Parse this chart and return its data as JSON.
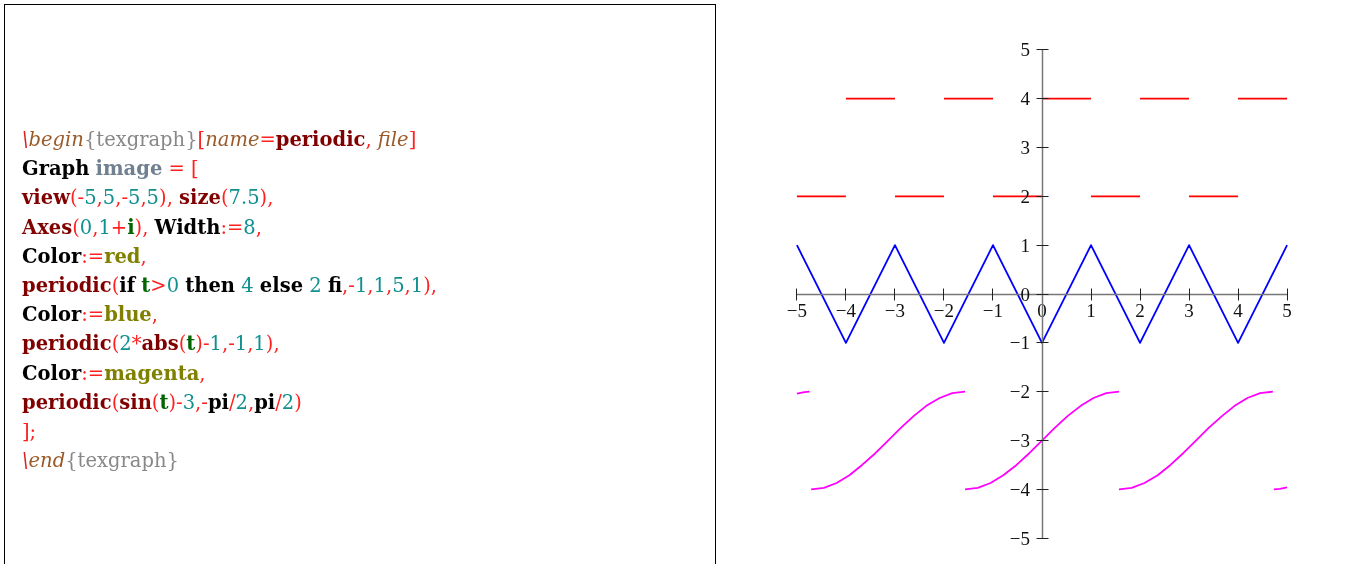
{
  "chart_data": {
    "type": "line",
    "annotations": [
      "\\begin{texgraph}[name=periodic, file]",
      "Graph image = [",
      "view(-5,5,-5,5), size(7.5),",
      "Axes(0,1+i), Width:=8,",
      "Color:=red,",
      "periodic(if t>0 then 4 else 2 fi,-1,1,5,1),",
      "Color:=blue,",
      "periodic(2*abs(t)-1,-1,1),",
      "Color:=magenta,",
      "periodic(sin(t)-3,-pi/2,pi/2)",
      "];",
      "\\end{texgraph}"
    ],
    "xlim": [
      -5,
      5
    ],
    "ylim": [
      -5,
      5
    ],
    "xticks": [
      {
        "value": -5,
        "label": "−5"
      },
      {
        "value": -4,
        "label": "−4"
      },
      {
        "value": -3,
        "label": "−3"
      },
      {
        "value": -2,
        "label": "−2"
      },
      {
        "value": -1,
        "label": "−1"
      },
      0,
      1,
      2,
      3,
      4,
      5
    ],
    "yticks": [
      {
        "value": -5,
        "label": "−5"
      },
      {
        "value": -4,
        "label": "−4"
      },
      {
        "value": -3,
        "label": "−3"
      },
      {
        "value": -2,
        "label": "−2"
      },
      {
        "value": -1,
        "label": "−1"
      },
      0,
      1,
      2,
      3,
      4,
      5
    ],
    "series": [
      {
        "color": "#ff0000",
        "x": [
          -5,
          -4,
          null,
          -4,
          -3,
          null,
          -3,
          -2,
          null,
          -2,
          -1,
          null,
          -1,
          0,
          null,
          0,
          1,
          null,
          1,
          2,
          null,
          2,
          3,
          null,
          3,
          4,
          null,
          4,
          5
        ],
        "values": [
          2,
          2,
          null,
          4,
          4,
          null,
          2,
          2,
          null,
          4,
          4,
          null,
          2,
          2,
          null,
          4,
          4,
          null,
          2,
          2,
          null,
          4,
          4,
          null,
          2,
          2,
          null,
          4,
          4
        ]
      },
      {
        "color": "#0000ff",
        "x": [
          -5,
          -4,
          -3,
          -2,
          -1,
          0,
          1,
          2,
          3,
          4,
          5
        ],
        "values": [
          1,
          -1,
          1,
          -1,
          1,
          -1,
          1,
          -1,
          1,
          -1,
          1
        ]
      },
      {
        "color": "#ff00ff",
        "x": [
          -4.71,
          -4.45,
          -4.19,
          -3.93,
          -3.67,
          -3.4,
          -3.14,
          -2.88,
          -2.62,
          -2.36,
          -2.09,
          -1.83,
          -1.57,
          null,
          -1.57,
          -1.31,
          -1.05,
          -0.79,
          -0.52,
          -0.26,
          0,
          0.26,
          0.52,
          0.79,
          1.05,
          1.31,
          1.57,
          null,
          1.57,
          1.83,
          2.09,
          2.36,
          2.62,
          2.88,
          3.14,
          3.4,
          3.67,
          3.93,
          4.19,
          4.45,
          4.71
        ],
        "values": [
          -4,
          -3.97,
          -3.87,
          -3.71,
          -3.5,
          -3.26,
          -3,
          -2.74,
          -2.5,
          -2.29,
          -2.13,
          -2.03,
          -2,
          null,
          -4,
          -3.97,
          -3.87,
          -3.71,
          -3.5,
          -3.26,
          -3,
          -2.74,
          -2.5,
          -2.29,
          -2.13,
          -2.03,
          -2,
          null,
          -4,
          -3.97,
          -3.87,
          -3.71,
          -3.5,
          -3.26,
          -3,
          -2.74,
          -2.5,
          -2.29,
          -2.13,
          -2.03,
          -2
        ]
      },
      {
        "color": "#ff00ff",
        "x": [
          -5,
          -4.85,
          -4.74,
          null,
          4.73,
          4.85,
          5
        ],
        "values": [
          -2.04,
          -2.01,
          -2.0,
          null,
          -4.0,
          -3.99,
          -3.96
        ]
      }
    ]
  }
}
